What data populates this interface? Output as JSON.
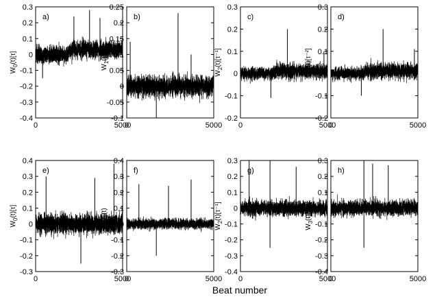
{
  "figure": {
    "xlabel": "Beat number",
    "line_color": "#000000"
  },
  "chart_data": [
    {
      "id": "a",
      "type": "line",
      "panel_label": "a)",
      "ylabel": "W0(t)[τ]",
      "xlim": [
        0,
        5000
      ],
      "ylim": [
        -0.4,
        0.3
      ],
      "yticks": [
        -0.4,
        -0.3,
        -0.2,
        -0.1,
        0,
        0.1,
        0.2,
        0.3
      ],
      "xticks": [
        0,
        5000
      ],
      "n_points": 5000,
      "segments": [
        {
          "x_start": 0,
          "x_end": 1900,
          "baseline": 0.0,
          "amp": 0.07
        },
        {
          "x_start": 1900,
          "x_end": 5000,
          "baseline": 0.03,
          "amp": 0.07
        }
      ],
      "spikes": [
        {
          "x": 3100,
          "y": 0.28
        },
        {
          "x": 2200,
          "y": 0.24
        },
        {
          "x": 3700,
          "y": 0.23
        },
        {
          "x": 400,
          "y": -0.15
        }
      ]
    },
    {
      "id": "b",
      "type": "line",
      "panel_label": "b)",
      "ylabel": "W1(t)",
      "xlim": [
        0,
        5000
      ],
      "ylim": [
        -0.1,
        0.25
      ],
      "yticks": [
        -0.1,
        -0.05,
        0,
        0.05,
        0.1,
        0.15,
        0.2,
        0.25
      ],
      "xticks": [
        0,
        5000
      ],
      "n_points": 5000,
      "segments": [
        {
          "x_start": 0,
          "x_end": 5000,
          "baseline": 0.0,
          "amp": 0.04
        }
      ],
      "spikes": [
        {
          "x": 2950,
          "y": 0.23
        },
        {
          "x": 200,
          "y": 0.14
        },
        {
          "x": 3700,
          "y": 0.1
        },
        {
          "x": 1700,
          "y": -0.1
        }
      ]
    },
    {
      "id": "c",
      "type": "line",
      "panel_label": "c)",
      "ylabel": "W2(t)[τ⁻¹]",
      "xlim": [
        0,
        5000
      ],
      "ylim": [
        -0.2,
        0.3
      ],
      "yticks": [
        -0.2,
        -0.1,
        0,
        0.1,
        0.2,
        0.3
      ],
      "xticks": [
        0,
        5000
      ],
      "n_points": 5000,
      "segments": [
        {
          "x_start": 0,
          "x_end": 1900,
          "baseline": 0.0,
          "amp": 0.035
        },
        {
          "x_start": 1900,
          "x_end": 5000,
          "baseline": 0.01,
          "amp": 0.045
        }
      ],
      "spikes": [
        {
          "x": 2700,
          "y": 0.2
        },
        {
          "x": 1750,
          "y": -0.11
        },
        {
          "x": 4800,
          "y": 0.1
        }
      ]
    },
    {
      "id": "d",
      "type": "line",
      "panel_label": "d)",
      "ylabel": "W3(t)[τ⁻²]",
      "xlim": [
        0,
        5000
      ],
      "ylim": [
        -0.2,
        0.3
      ],
      "yticks": [
        -0.2,
        -0.1,
        0,
        0.1,
        0.2,
        0.3
      ],
      "xticks": [
        0,
        5000
      ],
      "n_points": 5000,
      "segments": [
        {
          "x_start": 0,
          "x_end": 1900,
          "baseline": 0.0,
          "amp": 0.035
        },
        {
          "x_start": 1900,
          "x_end": 5000,
          "baseline": 0.01,
          "amp": 0.045
        }
      ],
      "spikes": [
        {
          "x": 3000,
          "y": 0.2
        },
        {
          "x": 1750,
          "y": -0.1
        },
        {
          "x": 4800,
          "y": 0.11
        }
      ]
    },
    {
      "id": "e",
      "type": "line",
      "panel_label": "e)",
      "ylabel": "W0(t)[τ]",
      "xlim": [
        0,
        5000
      ],
      "ylim": [
        -0.3,
        0.4
      ],
      "yticks": [
        -0.3,
        -0.2,
        -0.1,
        0,
        0.1,
        0.2,
        0.3,
        0.4
      ],
      "xticks": [
        0,
        5000
      ],
      "n_points": 5000,
      "segments": [
        {
          "x_start": 0,
          "x_end": 5000,
          "baseline": 0.0,
          "amp": 0.08
        }
      ],
      "spikes": [
        {
          "x": 4500,
          "y": 0.38
        },
        {
          "x": 600,
          "y": 0.3
        },
        {
          "x": 3400,
          "y": 0.29
        },
        {
          "x": 2600,
          "y": -0.25
        }
      ]
    },
    {
      "id": "f",
      "type": "line",
      "panel_label": "f)",
      "ylabel": "W1(t)",
      "xlim": [
        0,
        5000
      ],
      "ylim": [
        -0.3,
        0.4
      ],
      "yticks": [
        -0.3,
        -0.2,
        -0.1,
        0,
        0.1,
        0.2,
        0.3,
        0.4
      ],
      "xticks": [
        0,
        5000
      ],
      "n_points": 5000,
      "segments": [
        {
          "x_start": 0,
          "x_end": 5000,
          "baseline": 0.0,
          "amp": 0.04
        }
      ],
      "spikes": [
        {
          "x": 3700,
          "y": 0.28
        },
        {
          "x": 700,
          "y": 0.25
        },
        {
          "x": 2400,
          "y": 0.24
        },
        {
          "x": 1700,
          "y": -0.2
        }
      ]
    },
    {
      "id": "g",
      "type": "line",
      "panel_label": "g)",
      "ylabel": "W2(t)[τ⁻¹]",
      "xlim": [
        0,
        5000
      ],
      "ylim": [
        -0.4,
        0.3
      ],
      "yticks": [
        -0.4,
        -0.3,
        -0.2,
        -0.1,
        0,
        0.1,
        0.2,
        0.3
      ],
      "xticks": [
        0,
        5000
      ],
      "n_points": 5000,
      "segments": [
        {
          "x_start": 0,
          "x_end": 5000,
          "baseline": 0.0,
          "amp": 0.06
        }
      ],
      "spikes": [
        {
          "x": 500,
          "y": 0.3
        },
        {
          "x": 1700,
          "y": 0.3
        },
        {
          "x": 3200,
          "y": 0.26
        },
        {
          "x": 1700,
          "y": -0.25
        }
      ]
    },
    {
      "id": "h",
      "type": "line",
      "panel_label": "h)",
      "ylabel": "W3(t)[τ⁻²]",
      "xlim": [
        0,
        5000
      ],
      "ylim": [
        -0.4,
        0.3
      ],
      "yticks": [
        -0.4,
        -0.3,
        -0.2,
        -0.1,
        0,
        0.1,
        0.2,
        0.3
      ],
      "xticks": [
        0,
        5000
      ],
      "n_points": 5000,
      "segments": [
        {
          "x_start": 0,
          "x_end": 5000,
          "baseline": 0.0,
          "amp": 0.06
        }
      ],
      "spikes": [
        {
          "x": 1900,
          "y": 0.3
        },
        {
          "x": 2400,
          "y": 0.28
        },
        {
          "x": 3300,
          "y": 0.27
        },
        {
          "x": 1900,
          "y": -0.25
        }
      ]
    }
  ]
}
